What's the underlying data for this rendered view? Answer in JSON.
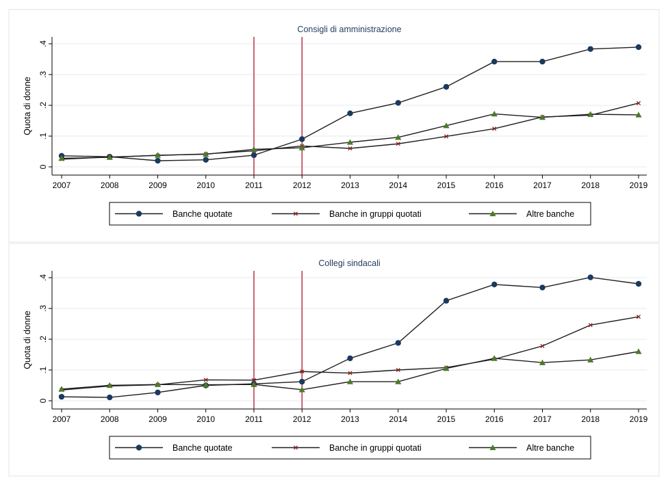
{
  "chart_data": [
    {
      "type": "line",
      "title": "Consigli di amministrazione",
      "ylabel": "Quota di donne",
      "xlabel": "",
      "x": [
        2007,
        2008,
        2009,
        2010,
        2011,
        2012,
        2013,
        2014,
        2015,
        2016,
        2017,
        2018,
        2019
      ],
      "x_tick_labels": [
        "2007",
        "2008",
        "2009",
        "2010",
        "2011",
        "2012",
        "2013",
        "2014",
        "2015",
        "2016",
        "2017",
        "2018",
        "2019"
      ],
      "ylim": [
        0,
        0.4
      ],
      "y_ticks": [
        0,
        0.1,
        0.2,
        0.3,
        0.4
      ],
      "y_tick_labels": [
        "0",
        ".1",
        ".2",
        ".3",
        ".4"
      ],
      "vlines": [
        2011,
        2012
      ],
      "grid": true,
      "legend_position": "bottom",
      "series": [
        {
          "name": "Banche quotate",
          "marker": "circle",
          "values": [
            0.036,
            0.033,
            0.02,
            0.023,
            0.038,
            0.09,
            0.174,
            0.208,
            0.26,
            0.342,
            0.342,
            0.383,
            0.389
          ]
        },
        {
          "name": "Banche in gruppi quotati",
          "marker": "x",
          "values": [
            0.025,
            0.032,
            0.037,
            0.042,
            0.052,
            0.068,
            0.06,
            0.075,
            0.099,
            0.124,
            0.162,
            0.168,
            0.207
          ]
        },
        {
          "name": "Altre banche",
          "marker": "triangle",
          "values": [
            0.028,
            0.031,
            0.038,
            0.041,
            0.057,
            0.062,
            0.08,
            0.096,
            0.134,
            0.172,
            0.161,
            0.171,
            0.169
          ]
        }
      ]
    },
    {
      "type": "line",
      "title": "Collegi sindacali",
      "ylabel": "Quota di donne",
      "xlabel": "",
      "x": [
        2007,
        2008,
        2009,
        2010,
        2011,
        2012,
        2013,
        2014,
        2015,
        2016,
        2017,
        2018,
        2019
      ],
      "x_tick_labels": [
        "2007",
        "2008",
        "2009",
        "2010",
        "2011",
        "2012",
        "2013",
        "2014",
        "2015",
        "2016",
        "2017",
        "2018",
        "2019"
      ],
      "ylim": [
        0,
        0.4
      ],
      "y_ticks": [
        0,
        0.1,
        0.2,
        0.3,
        0.4
      ],
      "y_tick_labels": [
        "0",
        ".1",
        ".2",
        ".3",
        ".4"
      ],
      "vlines": [
        2011,
        2012
      ],
      "grid": true,
      "legend_position": "bottom",
      "series": [
        {
          "name": "Banche quotate",
          "marker": "circle",
          "values": [
            0.013,
            0.011,
            0.027,
            0.05,
            0.055,
            0.062,
            0.138,
            0.188,
            0.325,
            0.378,
            0.368,
            0.401,
            0.38
          ]
        },
        {
          "name": "Banche in gruppi quotati",
          "marker": "x",
          "values": [
            0.035,
            0.048,
            0.052,
            0.068,
            0.067,
            0.095,
            0.09,
            0.1,
            0.108,
            0.135,
            0.178,
            0.246,
            0.273
          ]
        },
        {
          "name": "Altre banche",
          "marker": "triangle",
          "values": [
            0.038,
            0.05,
            0.053,
            0.052,
            0.053,
            0.036,
            0.062,
            0.062,
            0.105,
            0.138,
            0.124,
            0.133,
            0.16
          ]
        }
      ]
    }
  ],
  "colors": {
    "series": [
      "#1a3a5f",
      "#8a1c1c",
      "#4d7a2a"
    ],
    "vline": "#b0122c",
    "grid": "#e6eaee",
    "panel_border": "#dfe5ea",
    "title": "#1f3a5c"
  }
}
